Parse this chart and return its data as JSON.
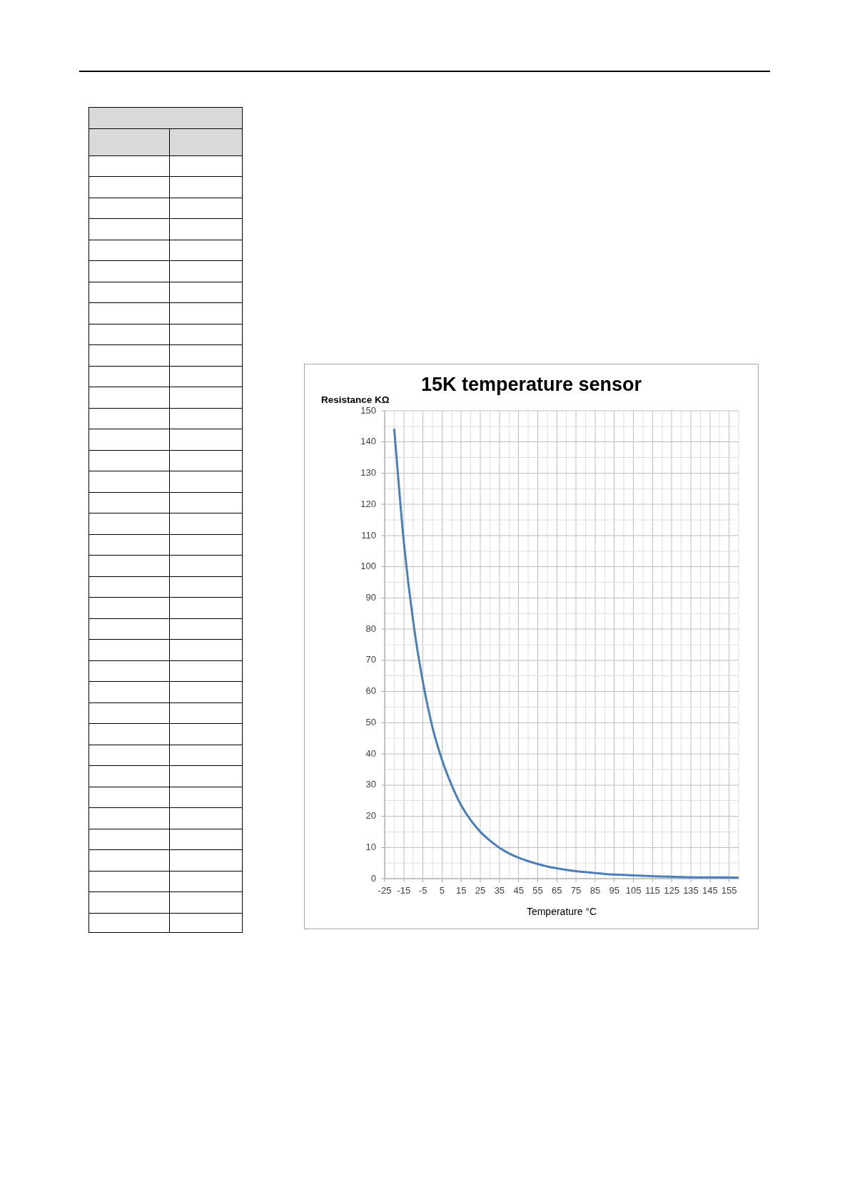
{
  "chart_data": {
    "type": "line",
    "title": "15K temperature sensor",
    "xlabel": "Temperature °C",
    "ylabel": "Resistance KΩ",
    "x": [
      -20,
      -15,
      -10,
      -5,
      0,
      5,
      10,
      15,
      20,
      25,
      30,
      35,
      40,
      45,
      50,
      55,
      60,
      65,
      70,
      75,
      80,
      85,
      90,
      95,
      100,
      110,
      120,
      130,
      140,
      150,
      160
    ],
    "values": [
      144,
      108,
      82,
      63,
      48.5,
      38,
      30,
      23.5,
      18.7,
      15,
      12.2,
      9.9,
      8.1,
      6.7,
      5.6,
      4.7,
      3.9,
      3.3,
      2.8,
      2.4,
      2.1,
      1.8,
      1.5,
      1.3,
      1.2,
      0.9,
      0.7,
      0.5,
      0.4,
      0.4,
      0.3
    ],
    "color": "#4a7ebb",
    "xlim": [
      -25,
      160
    ],
    "xticks": [
      -25,
      {
        "value": -20,
        "label": null
      },
      -15,
      {
        "value": -10,
        "label": null
      },
      -5,
      {
        "value": 0,
        "label": null
      },
      5,
      {
        "value": 10,
        "label": null
      },
      15,
      {
        "value": 20,
        "label": null
      },
      25,
      {
        "value": 30,
        "label": null
      },
      35,
      {
        "value": 40,
        "label": null
      },
      45,
      {
        "value": 50,
        "label": null
      },
      55,
      {
        "value": 60,
        "label": null
      },
      65,
      {
        "value": 70,
        "label": null
      },
      75,
      {
        "value": 80,
        "label": null
      },
      85,
      {
        "value": 90,
        "label": null
      },
      95,
      {
        "value": 100,
        "label": null
      },
      105,
      {
        "value": 110,
        "label": null
      },
      115,
      {
        "value": 120,
        "label": null
      },
      125,
      {
        "value": 130,
        "label": null
      },
      135,
      {
        "value": 140,
        "label": null
      },
      145,
      {
        "value": 150,
        "label": null
      },
      155,
      {
        "value": 160,
        "label": null
      }
    ],
    "ylim": [
      0,
      150
    ],
    "yticks": [
      0,
      {
        "value": 5,
        "label": null
      },
      10,
      {
        "value": 15,
        "label": null
      },
      20,
      {
        "value": 25,
        "label": null
      },
      30,
      {
        "value": 35,
        "label": null
      },
      40,
      {
        "value": 45,
        "label": null
      },
      50,
      {
        "value": 55,
        "label": null
      },
      60,
      {
        "value": 65,
        "label": null
      },
      70,
      {
        "value": 75,
        "label": null
      },
      80,
      {
        "value": 85,
        "label": null
      },
      90,
      {
        "value": 95,
        "label": null
      },
      100,
      {
        "value": 105,
        "label": null
      },
      110,
      {
        "value": 115,
        "label": null
      },
      120,
      {
        "value": 125,
        "label": null
      },
      130,
      {
        "value": 135,
        "label": null
      },
      140,
      {
        "value": 145,
        "label": null
      },
      150
    ],
    "grid": true,
    "legend": false,
    "marker": "none",
    "line_style": "solid"
  }
}
